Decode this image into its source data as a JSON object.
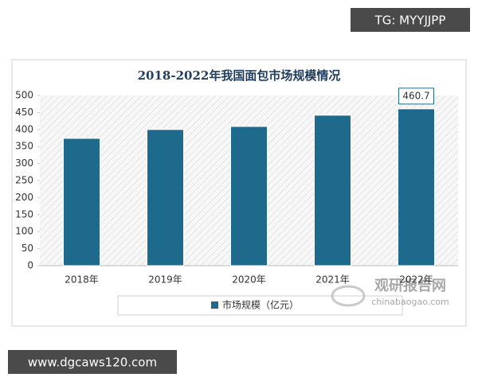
{
  "chart_data": {
    "type": "bar",
    "title": "2018-2022年我国面包市场规模情况",
    "categories": [
      "2018年",
      "2019年",
      "2020年",
      "2021年",
      "2022年"
    ],
    "series": [
      {
        "name": "市场规模（亿元）",
        "color": "#1e6a8c",
        "values": [
          374,
          400,
          409,
          442,
          460.7
        ]
      }
    ],
    "value_labels": [
      null,
      null,
      null,
      null,
      "460.7"
    ],
    "ylim": [
      0,
      500
    ],
    "yticks": [
      0,
      50,
      100,
      150,
      200,
      250,
      300,
      350,
      400,
      450,
      500
    ],
    "grid": false,
    "legend": "bottom"
  },
  "watermarks": {
    "top_right": "TG: MYYJJPP",
    "bottom_left": "www.dgcaws120.com",
    "logo": "观研报告网",
    "logo_url": "chinabaogao.com"
  }
}
